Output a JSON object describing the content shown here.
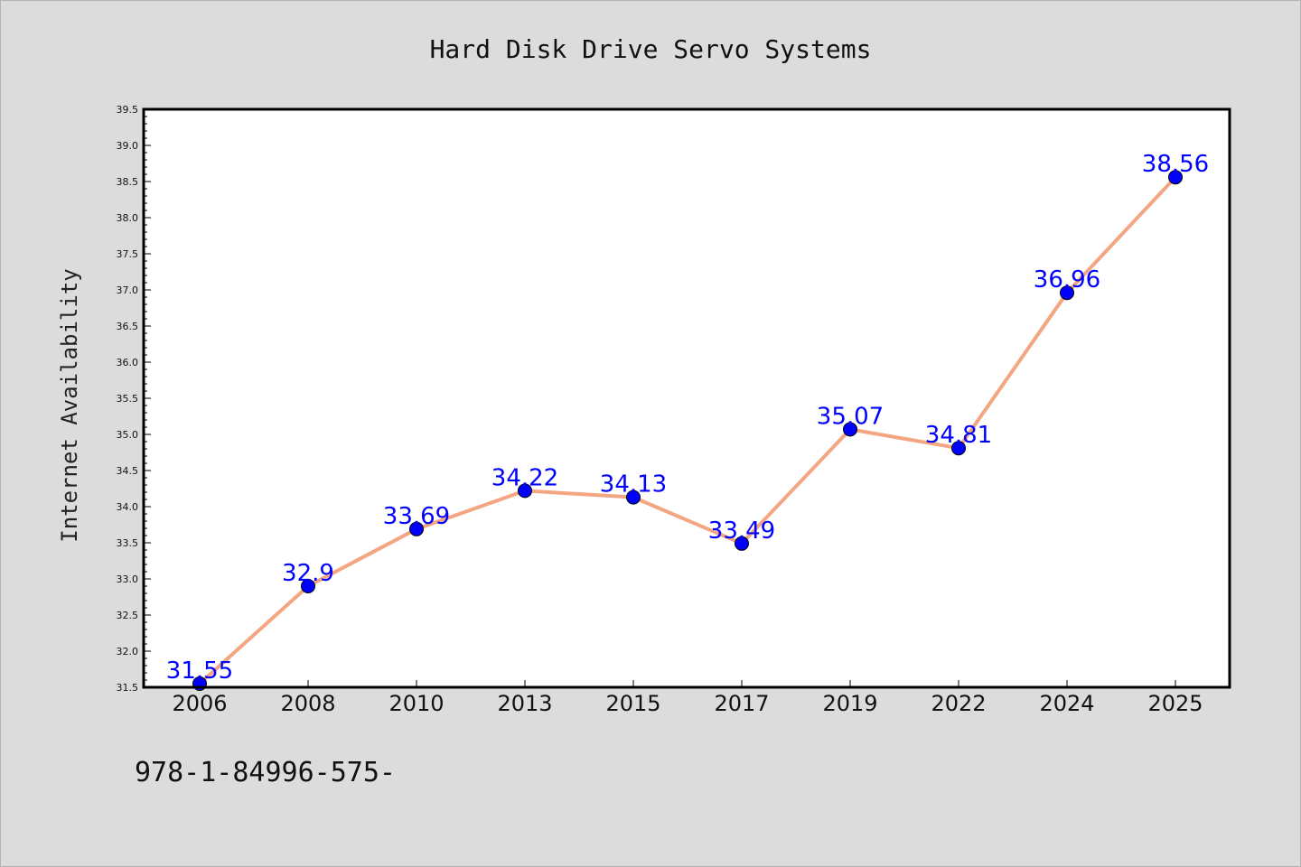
{
  "chart_data": {
    "type": "line",
    "title": "Hard Disk Drive Servo Systems",
    "xlabel": "",
    "ylabel": "Internet Availability",
    "categories": [
      "2006",
      "2008",
      "2010",
      "2013",
      "2015",
      "2017",
      "2019",
      "2022",
      "2024",
      "2025"
    ],
    "series": [
      {
        "values": [
          31.55,
          32.9,
          33.69,
          34.22,
          34.13,
          33.49,
          35.07,
          34.81,
          36.96,
          38.56
        ],
        "data_labels": [
          "31.55",
          "32.9",
          "33.69",
          "34.22",
          "34.13",
          "33.49",
          "35.07",
          "34.81",
          "36.96",
          "38.56"
        ],
        "line_color": "#f4a582",
        "marker_color": "#0000ff"
      }
    ],
    "ylim": [
      31.5,
      39.5
    ],
    "y_ticks": [
      "31.5",
      "32.0",
      "32.5",
      "33.0",
      "33.5",
      "34.0",
      "34.5",
      "35.0",
      "35.5",
      "36.0",
      "36.5",
      "37.0",
      "37.5",
      "38.0",
      "38.5",
      "39.0",
      "39.5"
    ],
    "grid": false,
    "legend": "none",
    "background": "#dcdcdc",
    "plot_background": "#ffffff",
    "label_color": "#0000ff"
  },
  "footer": {
    "text": "978-1-84996-575-"
  }
}
